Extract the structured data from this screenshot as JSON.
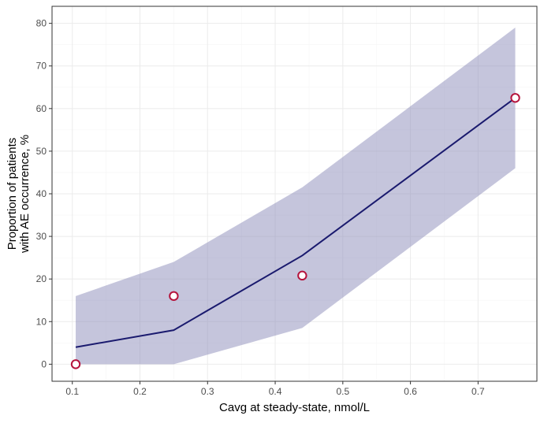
{
  "chart_data": {
    "type": "line",
    "title": "",
    "xlabel": "Cavg at steady-state, nmol/L",
    "ylabel": [
      "Proportion of patients",
      "with AE occurrence, %"
    ],
    "xlim": [
      0.07,
      0.787
    ],
    "ylim": [
      -4,
      84
    ],
    "x_ticks": [
      0.1,
      0.2,
      0.3,
      0.4,
      0.5,
      0.6,
      0.7
    ],
    "x_tick_labels": [
      "0.1",
      "0.2",
      "0.3",
      "0.4",
      "0.5",
      "0.6",
      "0.7"
    ],
    "y_ticks": [
      0,
      10,
      20,
      30,
      40,
      50,
      60,
      70,
      80
    ],
    "y_tick_labels": [
      "0",
      "10",
      "20",
      "30",
      "40",
      "50",
      "60",
      "70",
      "80"
    ],
    "grid": true,
    "series": [
      {
        "kind": "band",
        "x": [
          0.105,
          0.25,
          0.44,
          0.755
        ],
        "lower": [
          0,
          0,
          8.5,
          46
        ],
        "upper": [
          16,
          24,
          41.5,
          79
        ],
        "color": "#8c8cb9",
        "opacity": 0.5
      },
      {
        "kind": "line",
        "x": [
          0.105,
          0.25,
          0.44,
          0.755
        ],
        "y": [
          4,
          8,
          25.5,
          62.5
        ],
        "color": "#1a1a6e"
      },
      {
        "kind": "points",
        "x": [
          0.105,
          0.25,
          0.44,
          0.755
        ],
        "y": [
          0,
          16,
          20.8,
          62.5
        ],
        "color": "#b5133c",
        "fill": "#ffffff"
      }
    ]
  }
}
